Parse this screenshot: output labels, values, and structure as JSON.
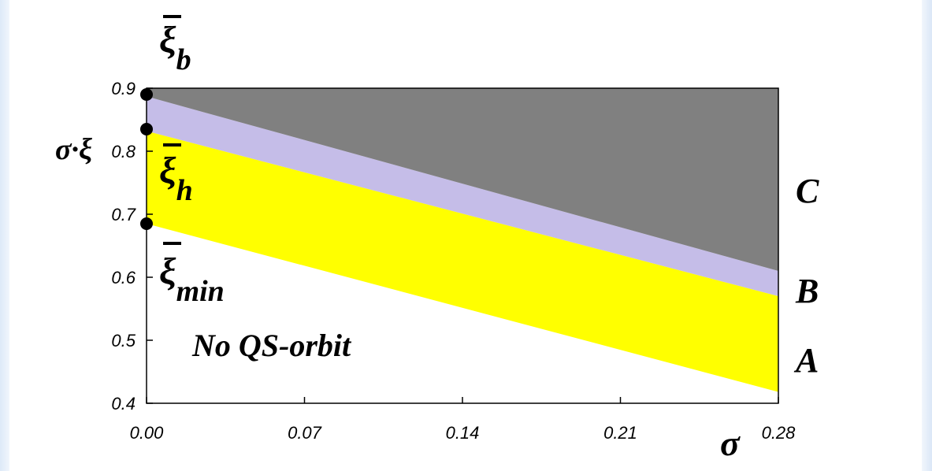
{
  "chart_data": {
    "type": "area",
    "title": "",
    "xlabel": "σ",
    "ylabel": "σ·ξ",
    "xlim": [
      0.0,
      0.28
    ],
    "ylim": [
      0.4,
      0.9
    ],
    "x_ticks": [
      "0.00",
      "0.07",
      "0.14",
      "0.21",
      "0.28"
    ],
    "y_ticks": [
      "0.4",
      "0.5",
      "0.6",
      "0.7",
      "0.8",
      "0.9"
    ],
    "grid": false,
    "legend": "none",
    "regions": [
      {
        "label": "A",
        "color": "#ffff00",
        "lower": [
          [
            0.0,
            0.685
          ],
          [
            0.28,
            0.418
          ]
        ],
        "upper": [
          [
            0.0,
            0.832
          ],
          [
            0.28,
            0.57
          ]
        ]
      },
      {
        "label": "B",
        "color": "#c5bde8",
        "lower": [
          [
            0.0,
            0.832
          ],
          [
            0.28,
            0.57
          ]
        ],
        "upper": [
          [
            0.0,
            0.887
          ],
          [
            0.28,
            0.61
          ]
        ]
      },
      {
        "label": "C",
        "color": "#808080",
        "lower": [
          [
            0.0,
            0.887
          ],
          [
            0.28,
            0.61
          ]
        ],
        "upper": [
          [
            0.0,
            0.9
          ],
          [
            0.28,
            0.9
          ]
        ]
      }
    ],
    "points": [
      {
        "x": 0.0,
        "y": 0.89,
        "label": "ξb"
      },
      {
        "x": 0.0,
        "y": 0.835,
        "label": "ξh"
      },
      {
        "x": 0.0,
        "y": 0.685,
        "label": "ξmin"
      }
    ],
    "annotations": [
      {
        "text": "No QS-orbit"
      }
    ]
  }
}
